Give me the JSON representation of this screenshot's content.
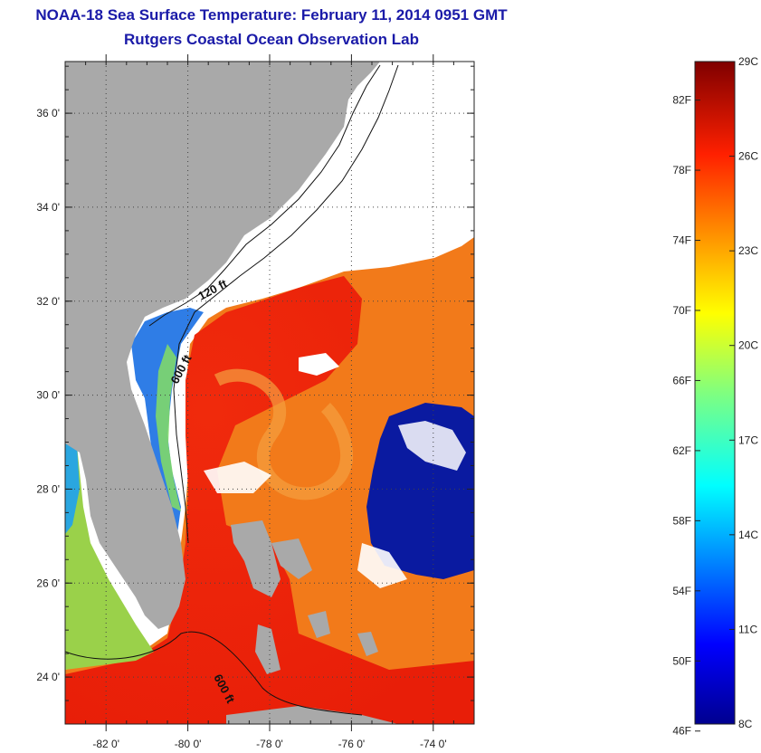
{
  "title": "NOAA-18 Sea Surface Temperature:  February 11, 2014 0951 GMT",
  "subtitle": "Rutgers Coastal Ocean Observation Lab",
  "map": {
    "lat_ticks": [
      "36 0'",
      "34 0'",
      "32 0'",
      "30 0'",
      "28 0'",
      "26 0'",
      "24 0'"
    ],
    "lat_values": [
      36,
      34,
      32,
      30,
      28,
      26,
      24
    ],
    "lon_ticks": [
      "-82 0'",
      "-80 0'",
      "-78 0'",
      "-76 0'",
      "-74 0'"
    ],
    "lon_values": [
      -82,
      -80,
      -78,
      -76,
      -74
    ],
    "lat_range": [
      23,
      37.1
    ],
    "lon_range": [
      -83,
      -73
    ],
    "contour_labels": [
      "120 ft",
      "600 ft",
      "600 ft"
    ],
    "colors": {
      "land": "#a9a9a9",
      "cloud": "#ffffff",
      "gulfstream": "#f03010",
      "cold_eddy": "#0a1aa0"
    }
  },
  "colorbar": {
    "fahrenheit_labels": [
      "82F",
      "78F",
      "74F",
      "70F",
      "66F",
      "62F",
      "58F",
      "54F",
      "50F",
      "46F"
    ],
    "celsius_labels": [
      "29C",
      "26C",
      "23C",
      "20C",
      "17C",
      "14C",
      "11C",
      "8C"
    ],
    "range_c": [
      8,
      29
    ],
    "colormap": "jet"
  }
}
